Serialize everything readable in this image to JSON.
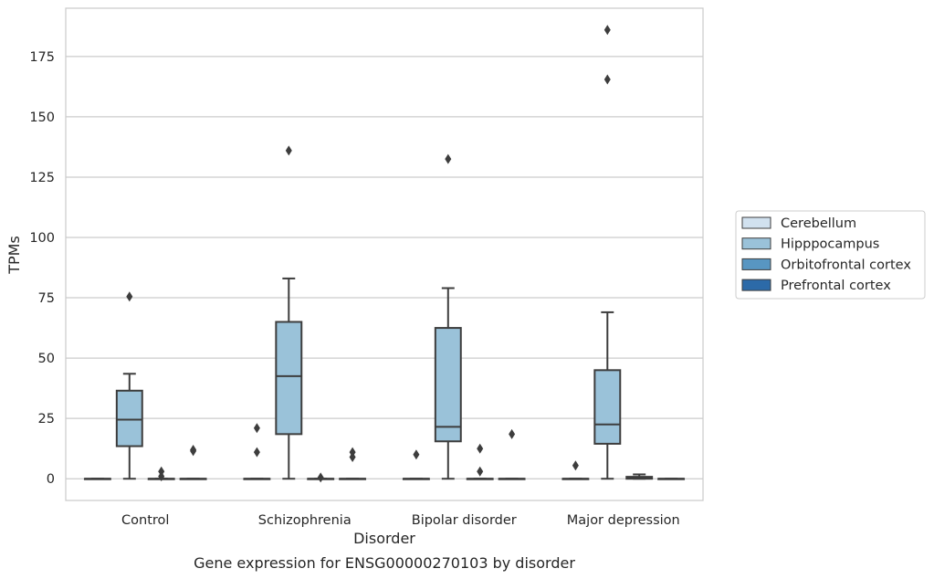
{
  "chart_data": {
    "type": "box",
    "caption": "Gene expression for ENSG00000270103 by disorder",
    "xlabel": "Disorder",
    "ylabel": "TPMs",
    "categories": [
      "Control",
      "Schizophrenia",
      "Bipolar disorder",
      "Major depression"
    ],
    "ylim": [
      -9,
      195
    ],
    "yticks": [
      0,
      25,
      50,
      75,
      100,
      125,
      150,
      175
    ],
    "grid": true,
    "legend_placement": "right",
    "series": [
      {
        "name": "Cerebellum",
        "color": "#d1e1ef",
        "boxes": [
          {
            "min": 0,
            "q1": 0,
            "median": 0,
            "q3": 0,
            "max": 0,
            "outliers": []
          },
          {
            "min": 0,
            "q1": 0,
            "median": 0,
            "q3": 0,
            "max": 0,
            "outliers": [
              21,
              11
            ]
          },
          {
            "min": 0,
            "q1": 0,
            "median": 0,
            "q3": 0,
            "max": 0,
            "outliers": [
              10
            ]
          },
          {
            "min": 0,
            "q1": 0,
            "median": 0,
            "q3": 0,
            "max": 0,
            "outliers": [
              5.5
            ]
          }
        ]
      },
      {
        "name": "Hipppocampus",
        "color": "#9ac2d9",
        "boxes": [
          {
            "min": 0,
            "q1": 13.5,
            "median": 24.5,
            "q3": 36.5,
            "max": 43.5,
            "outliers": [
              75.5
            ]
          },
          {
            "min": 0,
            "q1": 18.5,
            "median": 42.5,
            "q3": 65,
            "max": 83,
            "outliers": [
              136
            ]
          },
          {
            "min": 0,
            "q1": 15.5,
            "median": 21.5,
            "q3": 62.5,
            "max": 79,
            "outliers": [
              132.5
            ]
          },
          {
            "min": 0,
            "q1": 14.5,
            "median": 22.5,
            "q3": 45,
            "max": 69,
            "outliers": [
              186,
              165.5
            ]
          }
        ]
      },
      {
        "name": "Orbitofrontal cortex",
        "color": "#5896c2",
        "boxes": [
          {
            "min": 0,
            "q1": 0,
            "median": 0,
            "q3": 0,
            "max": 0,
            "outliers": [
              3,
              1
            ]
          },
          {
            "min": 0,
            "q1": 0,
            "median": 0,
            "q3": 0,
            "max": 0,
            "outliers": [
              0.5
            ]
          },
          {
            "min": 0,
            "q1": 0,
            "median": 0,
            "q3": 0,
            "max": 0,
            "outliers": [
              12.5,
              3
            ]
          },
          {
            "min": 0,
            "q1": 0,
            "median": 0.3,
            "q3": 0.8,
            "max": 1.8,
            "outliers": []
          }
        ]
      },
      {
        "name": "Prefrontal cortex",
        "color": "#2c6aa8",
        "boxes": [
          {
            "min": 0,
            "q1": 0,
            "median": 0,
            "q3": 0,
            "max": 0,
            "outliers": [
              11.5,
              12
            ]
          },
          {
            "min": 0,
            "q1": 0,
            "median": 0,
            "q3": 0,
            "max": 0,
            "outliers": [
              11,
              9
            ]
          },
          {
            "min": 0,
            "q1": 0,
            "median": 0,
            "q3": 0,
            "max": 0,
            "outliers": [
              18.5
            ]
          },
          {
            "min": 0,
            "q1": 0,
            "median": 0,
            "q3": 0,
            "max": 0,
            "outliers": []
          }
        ]
      }
    ]
  }
}
